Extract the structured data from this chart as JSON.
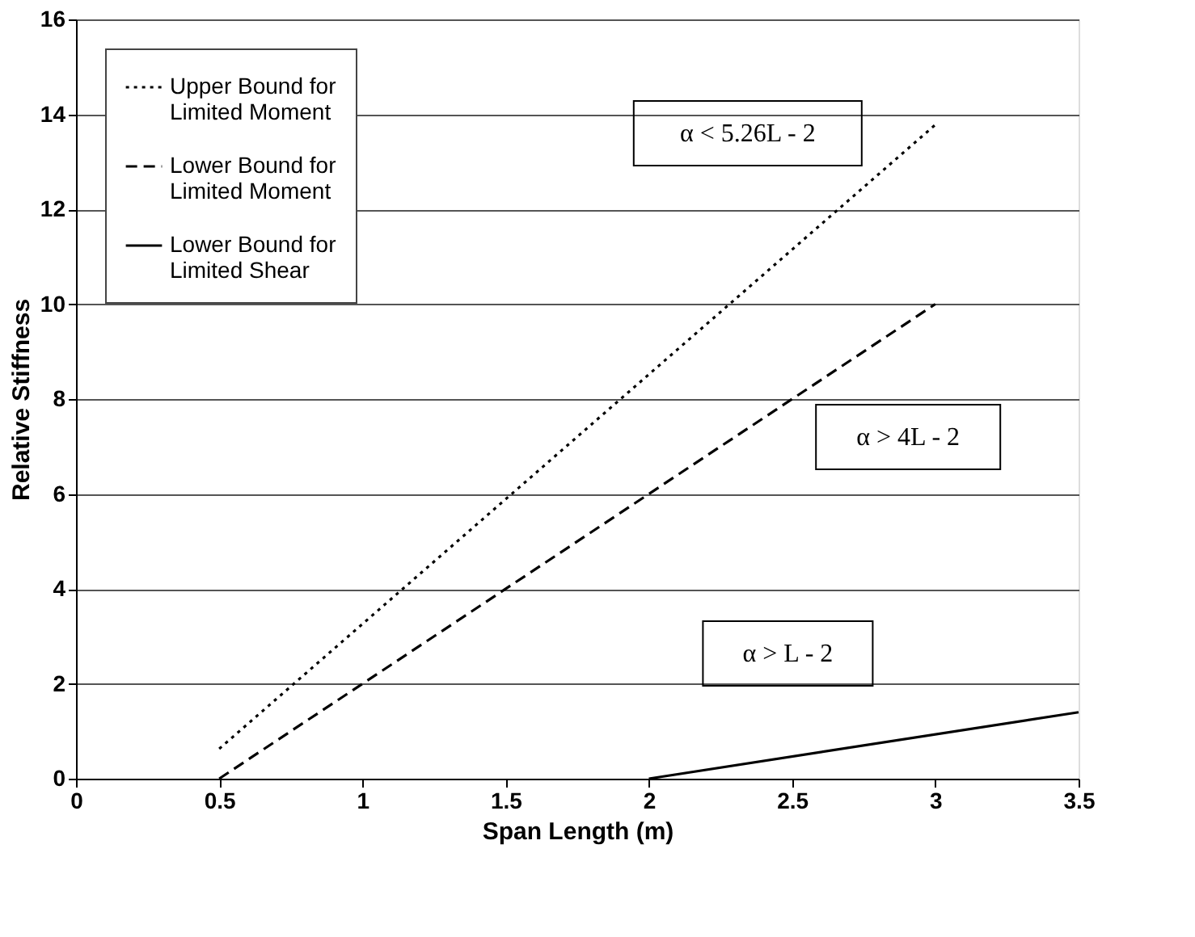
{
  "chart_data": {
    "type": "line",
    "xlabel": "Span Length (m)",
    "ylabel": "Relative Stiffness",
    "series": [
      {
        "name": "Upper Bound for Limited Moment",
        "color": "#000000",
        "line_style": "dotted",
        "x": [
          0.5,
          3
        ],
        "values": [
          0.63,
          13.78
        ]
      },
      {
        "name": "Lower Bound for Limited Moment",
        "color": "#000000",
        "line_style": "dashed",
        "x": [
          0.5,
          3
        ],
        "values": [
          0,
          10
        ]
      },
      {
        "name": "Lower Bound for Limited Shear",
        "color": "#000000",
        "line_style": "solid",
        "x": [
          2,
          3.5
        ],
        "values": [
          0,
          1.4
        ]
      }
    ],
    "annotations": [
      "α < 5.26L - 2",
      "α > 4L - 2",
      "α > L - 2"
    ],
    "xlim": [
      0,
      3.5
    ],
    "xticks": [
      0,
      0.5,
      1,
      1.5,
      2,
      2.5,
      3,
      3.5
    ],
    "ylim": [
      0,
      16
    ],
    "yticks": [
      0,
      2,
      4,
      6,
      8,
      10,
      12,
      14,
      16
    ],
    "grid": "y",
    "legend": "top left",
    "marker": "none"
  }
}
